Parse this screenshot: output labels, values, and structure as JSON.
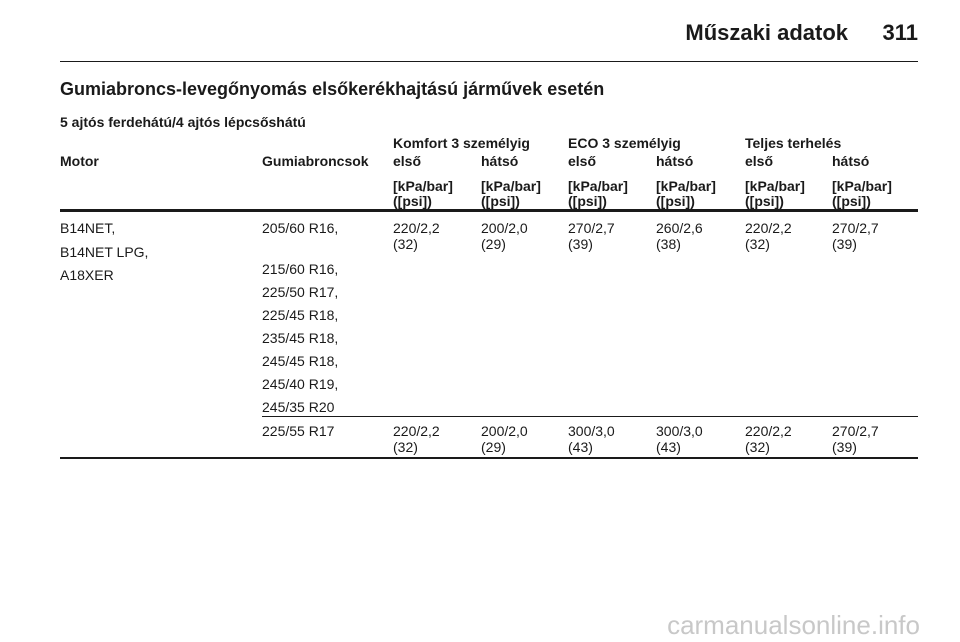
{
  "header": {
    "title": "Műszaki adatok",
    "page": "311"
  },
  "heading": "Gumiabroncs-levegőnyomás elsőkerékhajtású járművek esetén",
  "subheading": "5 ajtós ferdehátú/4 ajtós lépcsőshátú",
  "table": {
    "groups": [
      "Komfort 3 személyig",
      "ECO 3 személyig",
      "Teljes terhelés"
    ],
    "columns": [
      "Motor",
      "Gumiabroncsok",
      "első",
      "hátsó",
      "első",
      "hátsó",
      "első",
      "hátsó"
    ],
    "units": [
      [
        "[kPa/bar]",
        "([psi])"
      ],
      [
        "[kPa/bar]",
        "([psi])"
      ],
      [
        "[kPa/bar]",
        "([psi])"
      ],
      [
        "[kPa/bar]",
        "([psi])"
      ],
      [
        "[kPa/bar]",
        "([psi])"
      ],
      [
        "[kPa/bar]",
        "([psi])"
      ]
    ],
    "rows": [
      {
        "motor": [
          "B14NET,",
          "B14NET LPG,",
          "A18XER"
        ],
        "tyres": [
          "205/60 R16,",
          "215/60 R16,",
          "225/50 R17,",
          "225/45 R18,",
          "235/45 R18,",
          "245/45 R18,",
          "245/40 R19,",
          "245/35 R20"
        ],
        "values": [
          [
            "220/2,2",
            "(32)"
          ],
          [
            "200/2,0",
            "(29)"
          ],
          [
            "270/2,7",
            "(39)"
          ],
          [
            "260/2,6",
            "(38)"
          ],
          [
            "220/2,2",
            "(32)"
          ],
          [
            "270/2,7",
            "(39)"
          ]
        ]
      },
      {
        "motor": [],
        "tyres": [
          "225/55 R17"
        ],
        "values": [
          [
            "220/2,2",
            "(32)"
          ],
          [
            "200/2,0",
            "(29)"
          ],
          [
            "300/3,0",
            "(43)"
          ],
          [
            "300/3,0",
            "(43)"
          ],
          [
            "220/2,2",
            "(32)"
          ],
          [
            "270/2,7",
            "(39)"
          ]
        ]
      }
    ]
  },
  "watermark": "carmanualsonline.info"
}
